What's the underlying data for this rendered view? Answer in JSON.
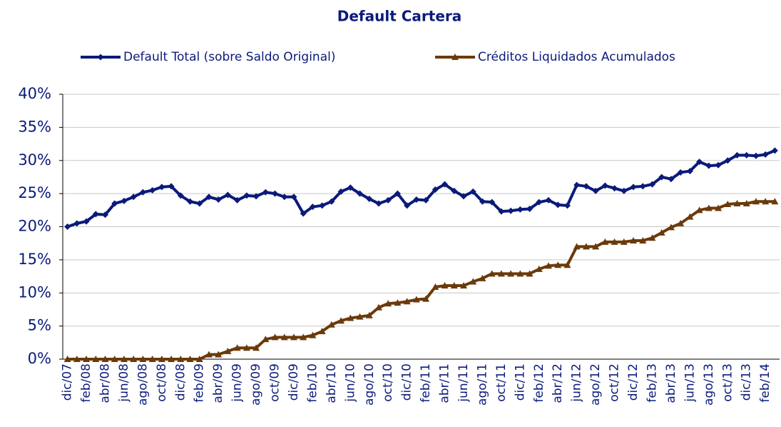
{
  "chart_data": {
    "type": "line",
    "title": "Default Cartera",
    "categories": [
      "dic/07",
      null,
      "feb/08",
      null,
      "abr/08",
      null,
      "jun/08",
      null,
      "ago/08",
      null,
      "oct/08",
      null,
      "dic/08",
      null,
      "feb/09",
      null,
      "abr/09",
      null,
      "jun/09",
      null,
      "ago/09",
      null,
      "oct/09",
      null,
      "dic/09",
      null,
      "feb/10",
      null,
      "abr/10",
      null,
      "jun/10",
      null,
      "ago/10",
      null,
      "oct/10",
      null,
      "dic/10",
      null,
      "feb/11",
      null,
      "abr/11",
      null,
      "jun/11",
      null,
      "ago/11",
      null,
      "oct/11",
      null,
      "dic/11",
      null,
      "feb/12",
      null,
      "abr/12",
      null,
      "jun/12",
      null,
      "ago/12",
      null,
      "oct/12",
      null,
      "dic/12",
      null,
      "feb/13",
      null,
      "abr/13",
      null,
      "jun/13",
      null,
      "ago/13",
      null,
      "oct/13",
      null,
      "dic/13",
      null,
      "feb/14",
      null
    ],
    "series": [
      {
        "name": "Default Total (sobre Saldo Original)",
        "color": "#0a1a7a",
        "marker": "diamond",
        "values": [
          20.0,
          20.5,
          20.8,
          21.9,
          21.8,
          23.5,
          23.9,
          24.5,
          25.2,
          25.5,
          26.0,
          26.1,
          24.7,
          23.8,
          23.5,
          24.5,
          24.1,
          24.8,
          24.0,
          24.7,
          24.6,
          25.2,
          25.0,
          24.5,
          24.5,
          22.0,
          23.0,
          23.2,
          23.8,
          25.3,
          25.9,
          25.0,
          24.2,
          23.5,
          24.0,
          25.0,
          23.2,
          24.1,
          24.0,
          25.6,
          26.4,
          25.4,
          24.6,
          25.3,
          23.8,
          23.7,
          22.3,
          22.4,
          22.6,
          22.7,
          23.7,
          24.0,
          23.3,
          23.2,
          26.3,
          26.1,
          25.4,
          26.2,
          25.8,
          25.4,
          26.0,
          26.1,
          26.4,
          27.5,
          27.2,
          28.2,
          28.4,
          29.8,
          29.2,
          29.3,
          30.0,
          30.8,
          30.8,
          30.7,
          30.9,
          31.5
        ]
      },
      {
        "name": "Créditos Liquidados Acumulados",
        "color": "#6b3a0a",
        "marker": "triangle",
        "values": [
          0,
          0,
          0,
          0,
          0,
          0,
          0,
          0,
          0,
          0,
          0,
          0,
          0,
          0,
          0,
          0.7,
          0.7,
          1.2,
          1.7,
          1.7,
          1.7,
          3.0,
          3.3,
          3.3,
          3.3,
          3.3,
          3.6,
          4.2,
          5.2,
          5.8,
          6.2,
          6.4,
          6.6,
          7.8,
          8.4,
          8.5,
          8.7,
          9.0,
          9.1,
          10.9,
          11.1,
          11.1,
          11.1,
          11.7,
          12.2,
          12.9,
          12.9,
          12.9,
          12.9,
          12.9,
          13.6,
          14.1,
          14.2,
          14.2,
          17.0,
          17.0,
          17.0,
          17.7,
          17.7,
          17.7,
          17.9,
          17.9,
          18.3,
          19.1,
          19.9,
          20.5,
          21.5,
          22.5,
          22.8,
          22.8,
          23.4,
          23.5,
          23.5,
          23.8,
          23.8,
          23.8
        ]
      }
    ],
    "ylim": [
      0,
      40
    ],
    "yticks": [
      {
        "value": 0,
        "label": "0%"
      },
      {
        "value": 5,
        "label": "5%"
      },
      {
        "value": 10,
        "label": "10%"
      },
      {
        "value": 15,
        "label": "15%"
      },
      {
        "value": 20,
        "label": "20%"
      },
      {
        "value": 25,
        "label": "25%"
      },
      {
        "value": 30,
        "label": "30%"
      },
      {
        "value": 35,
        "label": "35%"
      },
      {
        "value": 40,
        "label": "40%"
      }
    ],
    "grid": true,
    "legend": "top"
  }
}
